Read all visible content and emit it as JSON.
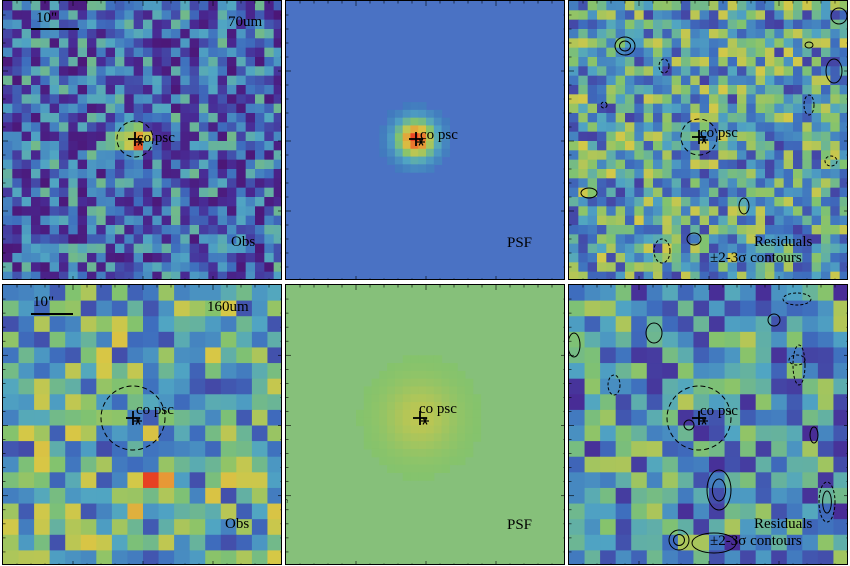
{
  "rows": [
    {
      "band": "70um",
      "scale_label": "10\"",
      "seed": 7,
      "panels": [
        {
          "kind": "obs",
          "label": "Obs",
          "marker_label": "co psc",
          "grid": 30
        },
        {
          "kind": "psf",
          "label": "PSF",
          "marker_label": "co psc",
          "y_ticks": [
            "30",
            "20",
            "10"
          ]
        },
        {
          "kind": "resid",
          "label": "Residuals",
          "contour_label": "±2-3σ contours",
          "marker_label": "co psc",
          "grid": 30
        }
      ]
    },
    {
      "band": "160um",
      "scale_label": "10\"",
      "seed": 11,
      "panels": [
        {
          "kind": "obs",
          "label": "Obs",
          "marker_label": "co psc",
          "grid": 18
        },
        {
          "kind": "psf",
          "label": "PSF",
          "marker_label": "co psc",
          "y_ticks": [
            "20",
            "15",
            "10",
            "5"
          ]
        },
        {
          "kind": "resid",
          "label": "Residuals",
          "contour_label": "±2-3σ contours",
          "marker_label": "co psc",
          "grid": 18
        }
      ]
    }
  ],
  "colors": {
    "psf_bg_70": "#4a72c4",
    "psf_bg_160": "#86c07a",
    "frame": "#000000"
  }
}
